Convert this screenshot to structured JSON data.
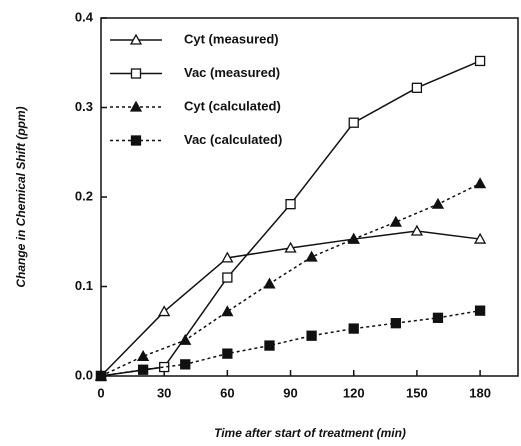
{
  "chart_data": {
    "type": "line",
    "xlabel": "Time after start of treatment (min)",
    "ylabel": "Change in Chemical Shift (ppm)",
    "xlim": [
      0,
      198
    ],
    "xticks": [
      0,
      30,
      60,
      90,
      120,
      150,
      180
    ],
    "ylim": [
      0,
      0.4
    ],
    "yticks": [
      {
        "value": 0,
        "label": "0.0"
      },
      0.1,
      0.2,
      0.3,
      0.4
    ],
    "legend": "upper left",
    "series": [
      {
        "name": "Cyt (measured)",
        "color": "#111111",
        "marker": "triangle",
        "filled": false,
        "dashed": false,
        "x": [
          0,
          30,
          60,
          90,
          120,
          150,
          180
        ],
        "values": [
          0,
          0.072,
          0.132,
          0.143,
          0.153,
          0.162,
          0.153
        ]
      },
      {
        "name": "Vac (measured)",
        "color": "#111111",
        "marker": "square",
        "filled": false,
        "dashed": false,
        "x": [
          0,
          30,
          60,
          90,
          120,
          150,
          180
        ],
        "values": [
          0,
          0.01,
          0.11,
          0.192,
          0.283,
          0.322,
          0.352
        ]
      },
      {
        "name": "Cyt (calculated)",
        "color": "#111111",
        "marker": "triangle",
        "filled": true,
        "dashed": true,
        "x": [
          0,
          20,
          40,
          60,
          80,
          100,
          120,
          140,
          160,
          180
        ],
        "values": [
          0,
          0.022,
          0.04,
          0.072,
          0.103,
          0.133,
          0.153,
          0.172,
          0.192,
          0.215
        ]
      },
      {
        "name": "Vac (calculated)",
        "color": "#111111",
        "marker": "square",
        "filled": true,
        "dashed": true,
        "x": [
          0,
          20,
          40,
          60,
          80,
          100,
          120,
          140,
          160,
          180
        ],
        "values": [
          0,
          0.007,
          0.013,
          0.025,
          0.034,
          0.045,
          0.053,
          0.059,
          0.065,
          0.073
        ]
      }
    ]
  }
}
